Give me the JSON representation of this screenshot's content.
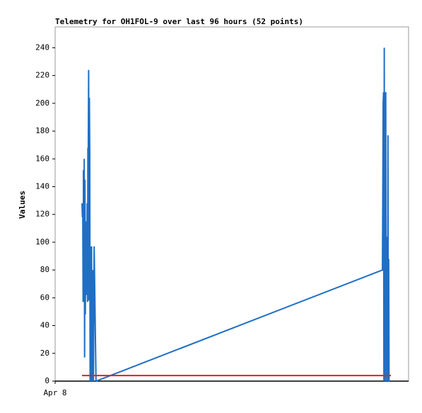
{
  "chart_data": {
    "type": "line",
    "title": "Telemetry for OH1FOL-9 over last 96 hours (52 points)",
    "ylabel": "Values",
    "xlim": [
      0,
      96
    ],
    "xticks": [
      {
        "value": 0,
        "label": "Apr 8"
      }
    ],
    "ylim": [
      0,
      255
    ],
    "yticks": [
      0,
      20,
      40,
      60,
      80,
      100,
      120,
      140,
      160,
      180,
      200,
      220,
      240
    ],
    "series": [
      {
        "color": "#1f6fc5",
        "x": [
          7.3,
          7.4,
          7.5,
          7.6,
          7.7,
          7.8,
          7.9,
          8.0,
          8.1,
          8.2,
          8.3,
          8.4,
          8.5,
          8.6,
          8.7,
          8.8,
          8.9,
          9.0,
          9.1,
          9.2,
          9.3,
          9.4,
          9.5,
          9.6,
          9.7,
          9.8,
          9.9,
          10.0,
          10.2,
          10.4,
          10.6,
          11.1,
          88.9,
          89.0,
          89.1,
          89.2,
          89.3,
          89.4,
          89.5,
          89.6,
          89.7,
          89.8,
          89.9,
          90.0,
          90.1,
          90.2,
          90.3,
          90.4,
          90.5,
          90.6,
          90.7,
          90.8
        ],
        "values": [
          128,
          118,
          127,
          57,
          152,
          60,
          160,
          17,
          145,
          48,
          97,
          65,
          115,
          62,
          128,
          57,
          168,
          165,
          224,
          58,
          204,
          165,
          0,
          80,
          97,
          0,
          97,
          0,
          80,
          0,
          97,
          0,
          80,
          136,
          200,
          208,
          0,
          240,
          0,
          208,
          75,
          208,
          0,
          104,
          74,
          104,
          0,
          177,
          0,
          88,
          0,
          0
        ]
      },
      {
        "color": "#e02020",
        "x": [
          7.3,
          91.2
        ],
        "values": [
          4,
          4
        ]
      }
    ]
  }
}
